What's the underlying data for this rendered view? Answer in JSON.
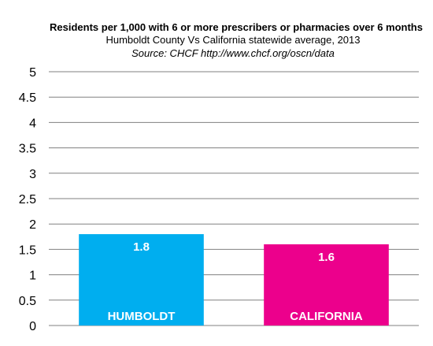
{
  "chart_data": {
    "type": "bar",
    "title": "Residents per 1,000 with 6 or more prescribers or pharmacies over 6 months",
    "subtitle": "Humboldt County Vs California statewide average, 2013",
    "source": "Source: CHCF   http://www.chcf.org/oscn/data",
    "categories": [
      "HUMBOLDT",
      "CALIFORNIA"
    ],
    "values": [
      1.8,
      1.6
    ],
    "value_labels": [
      "1.8",
      "1.6"
    ],
    "colors": [
      "#00aeef",
      "#ec008c"
    ],
    "ylim": [
      0,
      5
    ],
    "yticks": [
      "0",
      "0.5",
      "1",
      "1.5",
      "2",
      "2.5",
      "3",
      "3.5",
      "4",
      "4.5",
      "5"
    ],
    "grid": true,
    "legend": false
  }
}
